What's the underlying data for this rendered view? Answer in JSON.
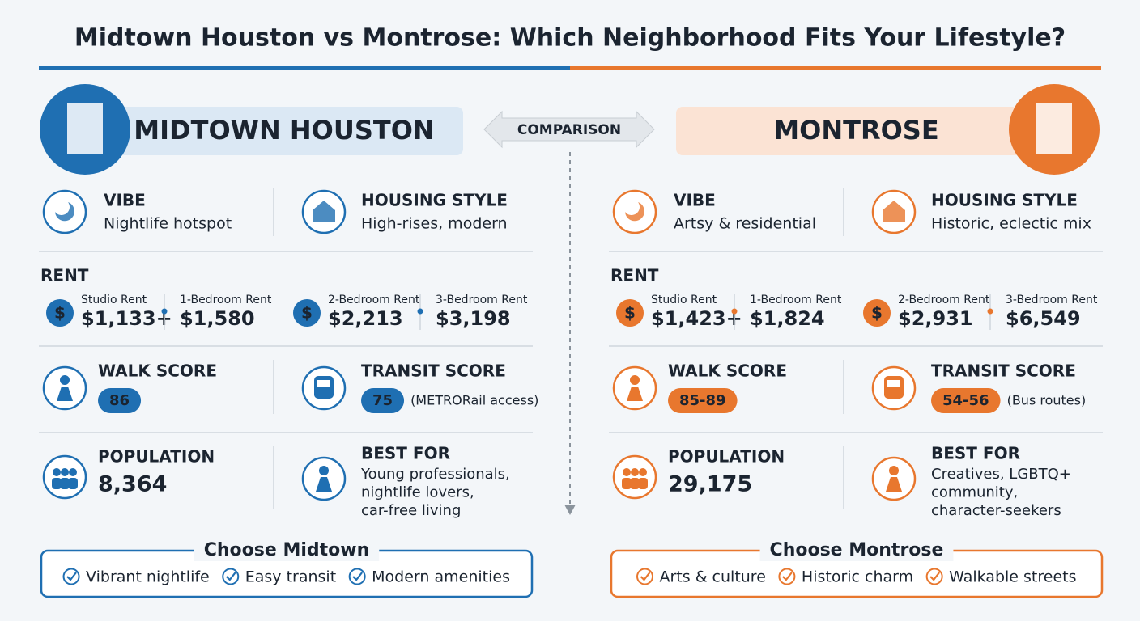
{
  "title": "Midtown Houston vs Montrose: Which Neighborhood Fits Your Lifestyle?",
  "comparison_label": "COMPARISON",
  "neighborhoods": [
    {
      "name": "MIDTOWN HOUSTON",
      "vibe": {
        "label": "VIBE",
        "text": "Nightlife hotspot"
      },
      "housing": {
        "label": "HOUSING STYLE",
        "text": "High-rises, modern"
      },
      "rent": {
        "label": "RENT",
        "items": [
          {
            "label": "Studio Rent",
            "value": "$1,133+"
          },
          {
            "label": "1-Bedroom Rent",
            "value": "$1,580"
          },
          {
            "label": "2-Bedroom Rent",
            "value": "$2,213"
          },
          {
            "label": "3-Bedroom Rent",
            "value": "$3,198"
          }
        ]
      },
      "walk": {
        "label": "WALK SCORE",
        "value": "86"
      },
      "transit": {
        "label": "TRANSIT SCORE",
        "value": "75",
        "note": "(METRORail access)"
      },
      "population": {
        "label": "POPULATION",
        "value": "8,364"
      },
      "best_for": {
        "label": "BEST FOR",
        "lines": [
          "Young professionals,",
          "nightlife lovers,",
          "car-free living"
        ]
      },
      "choose": {
        "title": "Choose Midtown",
        "items": [
          "Vibrant nightlife",
          "Easy transit",
          "Modern amenities"
        ]
      }
    },
    {
      "name": "MONTROSE",
      "vibe": {
        "label": "VIBE",
        "text": "Artsy & residential"
      },
      "housing": {
        "label": "HOUSING STYLE",
        "text": "Historic, eclectic mix"
      },
      "rent": {
        "label": "RENT",
        "items": [
          {
            "label": "Studio Rent",
            "value": "$1,423+"
          },
          {
            "label": "1-Bedroom Rent",
            "value": "$1,824"
          },
          {
            "label": "2-Bedroom Rent",
            "value": "$2,931"
          },
          {
            "label": "3-Bedroom Rent",
            "value": "$6,549"
          }
        ]
      },
      "walk": {
        "label": "WALK SCORE",
        "value": "85-89"
      },
      "transit": {
        "label": "TRANSIT SCORE",
        "value": "54-56",
        "note": "(Bus routes)"
      },
      "population": {
        "label": "POPULATION",
        "value": "29,175"
      },
      "best_for": {
        "label": "BEST FOR",
        "lines": [
          "Creatives, LGBTQ+",
          "community,",
          "character-seekers"
        ]
      },
      "choose": {
        "title": "Choose Montrose",
        "items": [
          "Arts & culture",
          "Historic charm",
          "Walkable streets"
        ]
      }
    }
  ]
}
